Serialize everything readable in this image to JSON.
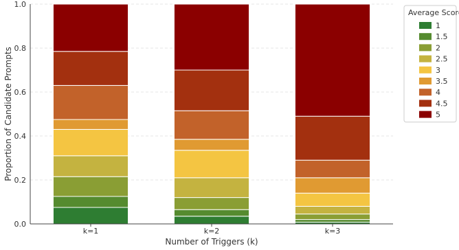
{
  "chart_data": {
    "type": "bar",
    "stacked": true,
    "categories": [
      "k=1",
      "k=2",
      "k=3"
    ],
    "xlabel": "Number of Triggers (k)",
    "ylabel": "Proportion of Candidate Prompts",
    "ylim": [
      0,
      1.0
    ],
    "yticks": [
      "0.0",
      "0.2",
      "0.4",
      "0.6",
      "0.8",
      "1.0"
    ],
    "grid": true,
    "legend": {
      "title": "Average Score",
      "placement": "outside-right"
    },
    "series": [
      {
        "name": "1",
        "color": "#2e7d32",
        "values": [
          0.075,
          0.035,
          0.008
        ]
      },
      {
        "name": "1.5",
        "color": "#558b2f",
        "values": [
          0.05,
          0.03,
          0.012
        ]
      },
      {
        "name": "2",
        "color": "#8a9e34",
        "values": [
          0.09,
          0.055,
          0.025
        ]
      },
      {
        "name": "2.5",
        "color": "#c4b340",
        "values": [
          0.095,
          0.09,
          0.035
        ]
      },
      {
        "name": "3",
        "color": "#f4c542",
        "values": [
          0.12,
          0.125,
          0.06
        ]
      },
      {
        "name": "3.5",
        "color": "#e09a32",
        "values": [
          0.045,
          0.05,
          0.07
        ]
      },
      {
        "name": "4",
        "color": "#c2622a",
        "values": [
          0.155,
          0.13,
          0.08
        ]
      },
      {
        "name": "4.5",
        "color": "#a3300f",
        "values": [
          0.155,
          0.185,
          0.2
        ]
      },
      {
        "name": "5",
        "color": "#8b0000",
        "values": [
          0.215,
          0.3,
          0.51
        ]
      }
    ]
  }
}
